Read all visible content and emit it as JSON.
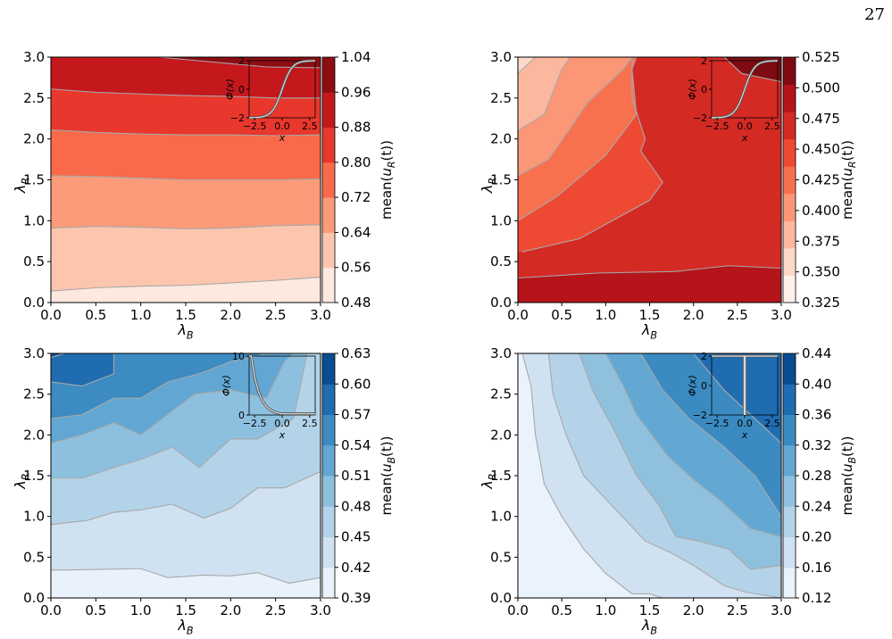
{
  "page": {
    "number": "27"
  },
  "chart_data": [
    {
      "type": "contour",
      "xlabel": "λB",
      "ylabel": "λR",
      "xlim": [
        0,
        3
      ],
      "ylim": [
        0,
        3
      ],
      "xticks": [
        "0.0",
        "0.5",
        "1.0",
        "1.5",
        "2.0",
        "2.5",
        "3.0"
      ],
      "yticks": [
        "0.0",
        "0.5",
        "1.0",
        "1.5",
        "2.0",
        "2.5",
        "3.0"
      ],
      "colorbar": {
        "label": "mean(uR(t))",
        "levels": [
          0.48,
          0.56,
          0.64,
          0.72,
          0.8,
          0.88,
          0.96,
          1.04
        ],
        "ticks": [
          "0.48",
          "0.56",
          "0.64",
          "0.72",
          "0.80",
          "0.88",
          "0.96",
          "1.04"
        ],
        "colors": [
          "#fee9df",
          "#fcc6ae",
          "#fb9b7a",
          "#f96a4a",
          "#e8372c",
          "#c4181d",
          "#8e0d13"
        ]
      },
      "contours": [
        {
          "level": 0.56,
          "points": [
            [
              0,
              0.14
            ],
            [
              0.5,
              0.18
            ],
            [
              1,
              0.2
            ],
            [
              1.5,
              0.21
            ],
            [
              2,
              0.24
            ],
            [
              2.5,
              0.27
            ],
            [
              3,
              0.31
            ]
          ]
        },
        {
          "level": 0.64,
          "points": [
            [
              0,
              0.91
            ],
            [
              0.5,
              0.93
            ],
            [
              1,
              0.92
            ],
            [
              1.5,
              0.9
            ],
            [
              2,
              0.91
            ],
            [
              2.5,
              0.94
            ],
            [
              3,
              0.95
            ]
          ]
        },
        {
          "level": 0.72,
          "points": [
            [
              0,
              1.55
            ],
            [
              0.5,
              1.54
            ],
            [
              1,
              1.52
            ],
            [
              1.5,
              1.5
            ],
            [
              2,
              1.5
            ],
            [
              2.5,
              1.5
            ],
            [
              3,
              1.51
            ]
          ]
        },
        {
          "level": 0.8,
          "points": [
            [
              0,
              2.11
            ],
            [
              0.5,
              2.08
            ],
            [
              1,
              2.06
            ],
            [
              1.5,
              2.05
            ],
            [
              2,
              2.05
            ],
            [
              2.5,
              2.04
            ],
            [
              3,
              2.05
            ]
          ]
        },
        {
          "level": 0.88,
          "points": [
            [
              0,
              2.61
            ],
            [
              0.5,
              2.57
            ],
            [
              1,
              2.55
            ],
            [
              1.5,
              2.53
            ],
            [
              2,
              2.52
            ],
            [
              2.5,
              2.5
            ],
            [
              3,
              2.5
            ]
          ]
        },
        {
          "level": 0.96,
          "points": [
            [
              1.2,
              3.0
            ],
            [
              1.8,
              2.94
            ],
            [
              2.4,
              2.88
            ],
            [
              3,
              2.87
            ]
          ]
        }
      ],
      "inset": {
        "function": "sigmoid",
        "xticks": [
          "−2.5",
          "0.0",
          "2.5"
        ],
        "yticks": [
          "−2",
          "0",
          "2"
        ],
        "ylim": [
          -2,
          2
        ],
        "xlim": [
          -3,
          3
        ],
        "xlabel": "x",
        "ylabel": "Φ(x)"
      }
    },
    {
      "type": "contour",
      "xlabel": "λB",
      "ylabel": "λR",
      "xlim": [
        0,
        3
      ],
      "ylim": [
        0,
        3
      ],
      "xticks": [
        "0.0",
        "0.5",
        "1.0",
        "1.5",
        "2.0",
        "2.5",
        "3.0"
      ],
      "yticks": [
        "0.0",
        "0.5",
        "1.0",
        "1.5",
        "2.0",
        "2.5",
        "3.0"
      ],
      "colorbar": {
        "label": "mean(uR(t))",
        "levels": [
          0.325,
          0.35,
          0.375,
          0.4,
          0.425,
          0.45,
          0.475,
          0.5,
          0.525
        ],
        "ticks": [
          "0.325",
          "0.350",
          "0.375",
          "0.400",
          "0.425",
          "0.450",
          "0.475",
          "0.500",
          "0.525"
        ],
        "colors": [
          "#fff1ea",
          "#fdd8c8",
          "#fcb79f",
          "#fb9676",
          "#f7714f",
          "#ee4a33",
          "#d42a24",
          "#b5141b",
          "#7f0b12"
        ]
      },
      "contours": [
        {
          "level": 0.35,
          "points": [
            [
              0,
              2.8
            ],
            [
              0.2,
              3.0
            ]
          ]
        },
        {
          "level": 0.375,
          "points": [
            [
              0,
              2.1
            ],
            [
              0.3,
              2.3
            ],
            [
              0.5,
              2.85
            ],
            [
              0.6,
              3.0
            ]
          ]
        },
        {
          "level": 0.4,
          "points": [
            [
              0,
              1.55
            ],
            [
              0.35,
              1.75
            ],
            [
              0.8,
              2.45
            ],
            [
              1.2,
              2.85
            ],
            [
              1.3,
              3.0
            ]
          ]
        },
        {
          "level": 0.425,
          "points": [
            [
              0,
              1.0
            ],
            [
              0.45,
              1.3
            ],
            [
              1.0,
              1.8
            ],
            [
              1.35,
              2.3
            ],
            [
              1.3,
              2.85
            ],
            [
              1.35,
              3.0
            ]
          ]
        },
        {
          "level": 0.45,
          "points": [
            [
              0.05,
              0.62
            ],
            [
              0.7,
              0.78
            ],
            [
              1.5,
              1.25
            ],
            [
              1.65,
              1.47
            ],
            [
              1.4,
              1.85
            ],
            [
              1.45,
              2.0
            ],
            [
              1.3,
              2.5
            ],
            [
              1.3,
              3.0
            ]
          ]
        },
        {
          "level": 0.475,
          "points": [
            [
              0,
              0.3
            ],
            [
              0.9,
              0.36
            ],
            [
              1.8,
              0.38
            ],
            [
              2.4,
              0.45
            ],
            [
              3.0,
              0.42
            ]
          ]
        },
        {
          "level": 0.5,
          "points": [
            [
              2.35,
              3.0
            ],
            [
              2.55,
              2.8
            ],
            [
              3.0,
              2.7
            ]
          ]
        }
      ],
      "inset": {
        "function": "sigmoid",
        "xticks": [
          "−2.5",
          "0.0",
          "2.5"
        ],
        "yticks": [
          "−2",
          "0",
          "2"
        ],
        "ylim": [
          -2,
          2
        ],
        "xlim": [
          -3,
          3
        ],
        "xlabel": "x",
        "ylabel": "Φ(x)"
      }
    },
    {
      "type": "contour",
      "xlabel": "λB",
      "ylabel": "λR",
      "xlim": [
        0,
        3
      ],
      "ylim": [
        0,
        3
      ],
      "xticks": [
        "0.0",
        "0.5",
        "1.0",
        "1.5",
        "2.0",
        "2.5",
        "3.0"
      ],
      "yticks": [
        "0.0",
        "0.5",
        "1.0",
        "1.5",
        "2.0",
        "2.5",
        "3.0"
      ],
      "colorbar": {
        "label": "mean(uB(t))",
        "levels": [
          0.39,
          0.42,
          0.45,
          0.48,
          0.51,
          0.54,
          0.57,
          0.6,
          0.63
        ],
        "ticks": [
          "0.39",
          "0.42",
          "0.45",
          "0.48",
          "0.51",
          "0.54",
          "0.57",
          "0.60",
          "0.63"
        ],
        "colors": [
          "#e9f2fa",
          "#d0e2f2",
          "#b3d3e8",
          "#8dc0df",
          "#62a7d3",
          "#3c8bc3",
          "#1f6cb0",
          "#0b4d92"
        ]
      },
      "contours": [
        {
          "level": 0.42,
          "points": [
            [
              0,
              0.34
            ],
            [
              0.5,
              0.35
            ],
            [
              1,
              0.36
            ],
            [
              1.3,
              0.25
            ],
            [
              1.7,
              0.28
            ],
            [
              2,
              0.27
            ],
            [
              2.3,
              0.31
            ],
            [
              2.65,
              0.18
            ],
            [
              3,
              0.25
            ]
          ]
        },
        {
          "level": 0.45,
          "points": [
            [
              0,
              0.9
            ],
            [
              0.4,
              0.95
            ],
            [
              0.7,
              1.05
            ],
            [
              1,
              1.08
            ],
            [
              1.35,
              1.15
            ],
            [
              1.7,
              0.98
            ],
            [
              2.0,
              1.1
            ],
            [
              2.3,
              1.35
            ],
            [
              2.6,
              1.35
            ],
            [
              3,
              1.55
            ]
          ]
        },
        {
          "level": 0.48,
          "points": [
            [
              0,
              1.47
            ],
            [
              0.35,
              1.47
            ],
            [
              0.7,
              1.6
            ],
            [
              1.0,
              1.7
            ],
            [
              1.35,
              1.85
            ],
            [
              1.65,
              1.6
            ],
            [
              2.0,
              1.95
            ],
            [
              2.3,
              1.95
            ],
            [
              2.7,
              2.2
            ],
            [
              2.85,
              3.0
            ]
          ]
        },
        {
          "level": 0.51,
          "points": [
            [
              0,
              1.9
            ],
            [
              0.35,
              2.0
            ],
            [
              0.7,
              2.15
            ],
            [
              1.0,
              2.0
            ],
            [
              1.3,
              2.25
            ],
            [
              1.6,
              2.5
            ],
            [
              2.0,
              2.55
            ],
            [
              2.4,
              2.45
            ],
            [
              2.6,
              2.9
            ],
            [
              2.7,
              3.0
            ]
          ]
        },
        {
          "level": 0.54,
          "points": [
            [
              0,
              2.2
            ],
            [
              0.35,
              2.25
            ],
            [
              0.7,
              2.45
            ],
            [
              1.0,
              2.45
            ],
            [
              1.3,
              2.65
            ],
            [
              1.65,
              2.75
            ],
            [
              2.0,
              2.9
            ],
            [
              2.3,
              2.97
            ],
            [
              2.4,
              3.0
            ]
          ]
        },
        {
          "level": 0.57,
          "points": [
            [
              0,
              2.65
            ],
            [
              0.35,
              2.6
            ],
            [
              0.7,
              2.75
            ],
            [
              0.7,
              3.0
            ]
          ]
        },
        {
          "level": 0.6,
          "points": [
            [
              0,
              2.95
            ],
            [
              0.15,
              3.0
            ]
          ]
        }
      ],
      "inset": {
        "function": "decaying",
        "xticks": [
          "−2.5",
          "0.0",
          "2.5"
        ],
        "yticks": [
          "0",
          "10"
        ],
        "ylim": [
          0,
          10
        ],
        "xlim": [
          -3,
          3
        ],
        "xlabel": "x",
        "ylabel": "Φ(x)"
      }
    },
    {
      "type": "contour",
      "xlabel": "λB",
      "ylabel": "λR",
      "xlim": [
        0,
        3
      ],
      "ylim": [
        0,
        3
      ],
      "xticks": [
        "0.0",
        "0.5",
        "1.0",
        "1.5",
        "2.0",
        "2.5",
        "3.0"
      ],
      "yticks": [
        "0.0",
        "0.5",
        "1.0",
        "1.5",
        "2.0",
        "2.5",
        "3.0"
      ],
      "colorbar": {
        "label": "mean(uB(t))",
        "levels": [
          0.12,
          0.16,
          0.2,
          0.24,
          0.28,
          0.32,
          0.36,
          0.4,
          0.44
        ],
        "ticks": [
          "0.12",
          "0.16",
          "0.20",
          "0.24",
          "0.28",
          "0.32",
          "0.36",
          "0.40",
          "0.44"
        ],
        "colors": [
          "#eaf2fb",
          "#d0e1f2",
          "#b4d3e9",
          "#8fc1de",
          "#63a8d3",
          "#3b8bc2",
          "#1f6cb0",
          "#0a4b91"
        ]
      },
      "contours": [
        {
          "level": 0.16,
          "points": [
            [
              0.05,
              3.0
            ],
            [
              0.15,
              2.6
            ],
            [
              0.2,
              2.0
            ],
            [
              0.3,
              1.4
            ],
            [
              0.5,
              1.0
            ],
            [
              0.75,
              0.6
            ],
            [
              1.0,
              0.3
            ],
            [
              1.3,
              0.05
            ],
            [
              1.5,
              0.05
            ],
            [
              1.65,
              0.0
            ]
          ]
        },
        {
          "level": 0.2,
          "points": [
            [
              0.35,
              3.0
            ],
            [
              0.4,
              2.5
            ],
            [
              0.55,
              2.0
            ],
            [
              0.75,
              1.5
            ],
            [
              1.1,
              1.1
            ],
            [
              1.45,
              0.7
            ],
            [
              1.75,
              0.55
            ],
            [
              2.0,
              0.4
            ],
            [
              2.35,
              0.15
            ],
            [
              2.6,
              0.07
            ],
            [
              3,
              0.0
            ]
          ]
        },
        {
          "level": 0.24,
          "points": [
            [
              0.7,
              3.0
            ],
            [
              0.85,
              2.55
            ],
            [
              1.1,
              2.05
            ],
            [
              1.35,
              1.5
            ],
            [
              1.6,
              1.15
            ],
            [
              1.8,
              0.75
            ],
            [
              2.05,
              0.7
            ],
            [
              2.4,
              0.6
            ],
            [
              2.65,
              0.35
            ],
            [
              3,
              0.4
            ]
          ]
        },
        {
          "level": 0.28,
          "points": [
            [
              1.0,
              3.0
            ],
            [
              1.2,
              2.6
            ],
            [
              1.35,
              2.25
            ],
            [
              1.7,
              1.75
            ],
            [
              2.0,
              1.45
            ],
            [
              2.3,
              1.2
            ],
            [
              2.65,
              0.85
            ],
            [
              3,
              0.75
            ]
          ]
        },
        {
          "level": 0.32,
          "points": [
            [
              1.4,
              3.0
            ],
            [
              1.65,
              2.55
            ],
            [
              1.95,
              2.2
            ],
            [
              2.35,
              1.85
            ],
            [
              2.7,
              1.5
            ],
            [
              3,
              1.0
            ]
          ]
        },
        {
          "level": 0.36,
          "points": [
            [
              2.0,
              3.0
            ],
            [
              2.35,
              2.55
            ],
            [
              2.7,
              2.2
            ],
            [
              3,
              1.9
            ]
          ]
        }
      ],
      "inset": {
        "function": "step",
        "xticks": [
          "−2.5",
          "0.0",
          "2.5"
        ],
        "yticks": [
          "−2",
          "0",
          "2"
        ],
        "ylim": [
          -2,
          2
        ],
        "xlim": [
          -3,
          3
        ],
        "xlabel": "x",
        "ylabel": "Φ(x)"
      }
    }
  ]
}
